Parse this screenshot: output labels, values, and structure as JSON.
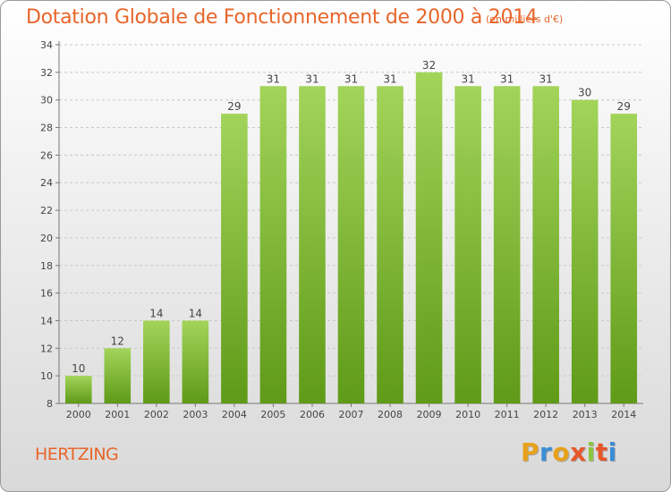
{
  "header": {
    "title": "Dotation Globale de Fonctionnement de 2000 à 2014",
    "unit": "(en milliers d'€)"
  },
  "footer": {
    "commune": "HERTZING",
    "logo_letters": [
      "P",
      "r",
      "o",
      "x",
      "i",
      "t",
      "i"
    ],
    "logo_colors": [
      "#e7a11b",
      "#3b8dd6",
      "#e7a11b",
      "#e7572a",
      "#8cc63f",
      "#e7572a",
      "#3b8dd6"
    ]
  },
  "chart_data": {
    "type": "bar",
    "title": "Dotation Globale de Fonctionnement de 2000 à 2014",
    "subtitle": "(en milliers d'€)",
    "categories": [
      "2000",
      "2001",
      "2002",
      "2003",
      "2004",
      "2005",
      "2006",
      "2007",
      "2008",
      "2009",
      "2010",
      "2011",
      "2012",
      "2013",
      "2014"
    ],
    "values": [
      10,
      12,
      14,
      14,
      29,
      31,
      31,
      31,
      31,
      32,
      31,
      31,
      31,
      30,
      29
    ],
    "ylim": [
      8,
      34
    ],
    "ytick_step": 2,
    "grid": true,
    "bar_color_top": "#a2d45a",
    "bar_color_bottom": "#5f9a18",
    "grid_color": "#c8c8c8"
  }
}
